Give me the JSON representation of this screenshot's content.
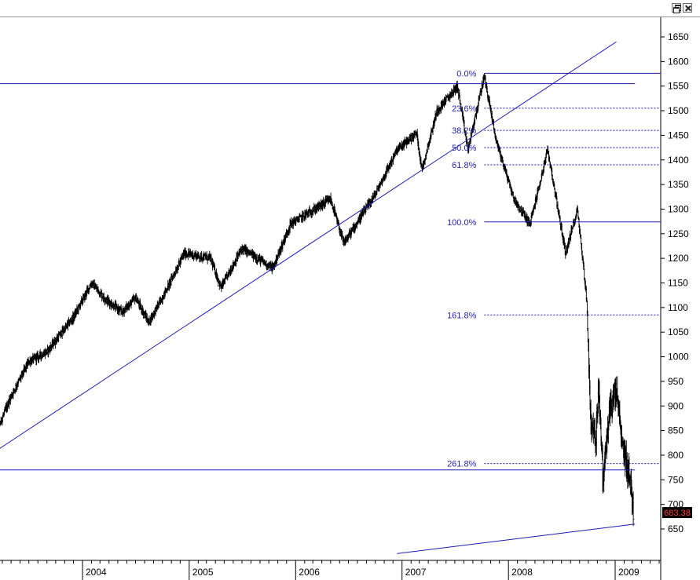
{
  "window": {
    "restore_icon": "restore-window-icon",
    "close_icon": "close-window-icon"
  },
  "colors": {
    "trendline": "#1a1ab8",
    "fib_label": "#2323b0",
    "bars": "#000000",
    "price_tag_bg": "#000000",
    "price_tag_text": "#ff4040"
  },
  "chart_data": {
    "type": "ohlc",
    "title": "",
    "xlabel": "",
    "ylabel": "",
    "x_tick_labels": [
      "2004",
      "2005",
      "2006",
      "2007",
      "2008",
      "2009"
    ],
    "ylim": [
      610,
      1680
    ],
    "y_ticks": [
      650,
      700,
      750,
      800,
      850,
      900,
      950,
      1000,
      1050,
      1100,
      1150,
      1200,
      1250,
      1300,
      1350,
      1400,
      1450,
      1500,
      1550,
      1600,
      1650
    ],
    "last_price": "683.38",
    "grid": false,
    "price_path": [
      [
        "2003-03-01",
        830
      ],
      [
        "2003-05-01",
        920
      ],
      [
        "2003-07-01",
        990
      ],
      [
        "2003-09-01",
        1010
      ],
      [
        "2003-12-01",
        1080
      ],
      [
        "2004-02-01",
        1150
      ],
      [
        "2004-03-15",
        1120
      ],
      [
        "2004-05-15",
        1090
      ],
      [
        "2004-07-01",
        1120
      ],
      [
        "2004-08-15",
        1070
      ],
      [
        "2004-10-01",
        1120
      ],
      [
        "2004-12-15",
        1210
      ],
      [
        "2005-03-15",
        1200
      ],
      [
        "2005-04-20",
        1140
      ],
      [
        "2005-07-01",
        1220
      ],
      [
        "2005-10-15",
        1180
      ],
      [
        "2005-12-15",
        1270
      ],
      [
        "2006-05-01",
        1320
      ],
      [
        "2006-06-15",
        1230
      ],
      [
        "2006-10-01",
        1330
      ],
      [
        "2006-12-15",
        1420
      ],
      [
        "2007-02-20",
        1455
      ],
      [
        "2007-03-10",
        1380
      ],
      [
        "2007-05-01",
        1500
      ],
      [
        "2007-07-10",
        1550
      ],
      [
        "2007-08-15",
        1420
      ],
      [
        "2007-10-10",
        1570
      ],
      [
        "2007-11-20",
        1440
      ],
      [
        "2008-01-20",
        1320
      ],
      [
        "2008-03-15",
        1270
      ],
      [
        "2008-05-15",
        1420
      ],
      [
        "2008-07-15",
        1210
      ],
      [
        "2008-08-25",
        1300
      ],
      [
        "2008-09-25",
        1120
      ],
      [
        "2008-10-10",
        860
      ],
      [
        "2008-10-27",
        830
      ],
      [
        "2008-11-05",
        950
      ],
      [
        "2008-11-20",
        750
      ],
      [
        "2008-12-15",
        900
      ],
      [
        "2009-01-06",
        930
      ],
      [
        "2009-01-25",
        820
      ],
      [
        "2009-02-20",
        760
      ],
      [
        "2009-03-05",
        683
      ]
    ],
    "trendlines": [
      {
        "name": "",
        "points": [
          [
            "2003-03-01",
            805
          ],
          [
            "2009-01-05",
            1640
          ]
        ]
      },
      {
        "name": "",
        "points": [
          [
            "2003-03-01",
            1555
          ],
          [
            "2009-03-10",
            1555
          ]
        ]
      },
      {
        "name": "",
        "points": [
          [
            "2003-03-01",
            770
          ],
          [
            "2009-03-10",
            770
          ]
        ]
      },
      {
        "name": "",
        "points": [
          [
            "2006-12-15",
            600
          ],
          [
            "2009-03-10",
            660
          ]
        ]
      }
    ],
    "fibonacci": {
      "anchor_start": "2007-10-10",
      "solid_levels": [
        {
          "label": "0.0%",
          "value": 1576
        },
        {
          "label": "100.0%",
          "value": 1274
        }
      ],
      "dashed_levels": [
        {
          "label": "23.6%",
          "value": 1505
        },
        {
          "label": "38.2%",
          "value": 1460
        },
        {
          "label": "50.0%",
          "value": 1425
        },
        {
          "label": "61.8%",
          "value": 1390
        },
        {
          "label": "161.8%",
          "value": 1085
        },
        {
          "label": "261.8%",
          "value": 783
        }
      ]
    }
  }
}
